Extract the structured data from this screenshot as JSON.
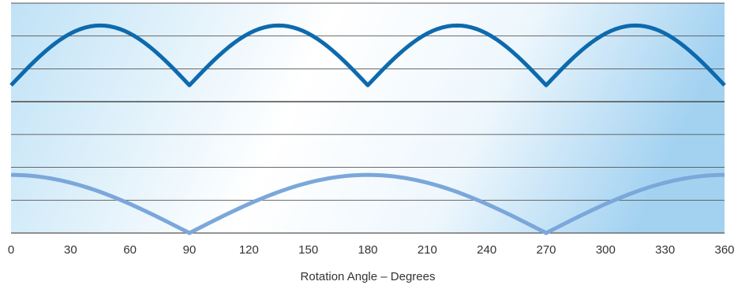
{
  "chart_data": {
    "type": "line",
    "title": "",
    "xlabel": "Rotation Angle – Degrees",
    "ylabel": "",
    "xlim": [
      0,
      360
    ],
    "ylim": [
      0,
      7
    ],
    "xticks": [
      "0",
      "30",
      "60",
      "90",
      "120",
      "150",
      "180",
      "210",
      "240",
      "270",
      "300",
      "330",
      "360"
    ],
    "grid": true,
    "legend": "none",
    "series": [
      {
        "color": "#0d6aad",
        "x": [
          0,
          15,
          30,
          45,
          60,
          75,
          90,
          105,
          120,
          135,
          150,
          165,
          180,
          195,
          210,
          225,
          240,
          255,
          270,
          285,
          300,
          315,
          330,
          345,
          360
        ],
        "y": [
          4.5,
          5.46,
          6.1,
          6.32,
          6.1,
          5.46,
          4.5,
          5.46,
          6.1,
          6.32,
          6.1,
          5.46,
          4.5,
          5.46,
          6.1,
          6.32,
          6.1,
          5.46,
          4.5,
          5.46,
          6.1,
          6.32,
          6.1,
          5.46,
          4.5
        ]
      },
      {
        "color": "#7ba7da",
        "x": [
          0,
          15,
          30,
          45,
          60,
          75,
          90,
          105,
          120,
          135,
          150,
          165,
          180,
          195,
          210,
          225,
          240,
          255,
          270,
          285,
          300,
          315,
          330,
          345,
          360
        ],
        "y": [
          1.77,
          1.71,
          1.53,
          1.25,
          0.89,
          0.46,
          0.0,
          0.46,
          0.89,
          1.25,
          1.53,
          1.71,
          1.77,
          1.71,
          1.53,
          1.25,
          0.89,
          0.46,
          0.0,
          0.46,
          0.89,
          1.25,
          1.53,
          1.71,
          1.77
        ]
      }
    ]
  },
  "colors": {
    "background_light": "#ffffff",
    "background_blue": "#a9d7f2",
    "grid": "#555555",
    "tick_label": "#333333"
  }
}
